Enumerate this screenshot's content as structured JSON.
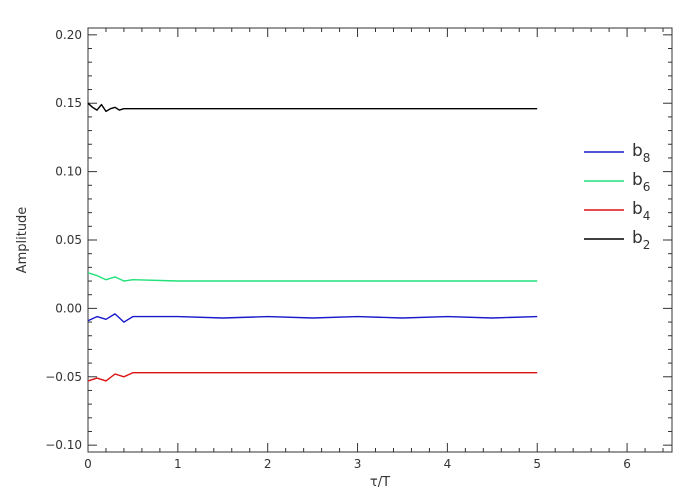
{
  "chart_data": {
    "type": "line",
    "title": "",
    "xlabel": "τ/T",
    "ylabel": "Amplitude",
    "xlim": [
      0,
      6.5
    ],
    "ylim": [
      -0.105,
      0.205
    ],
    "xticks": [
      0,
      1,
      2,
      3,
      4,
      5,
      6
    ],
    "xtick_labels": [
      "0",
      "1",
      "2",
      "3",
      "4",
      "5",
      "6"
    ],
    "yticks": [
      -0.1,
      -0.05,
      0.0,
      0.05,
      0.1,
      0.15,
      0.2
    ],
    "ytick_labels": [
      "−0.10",
      "−0.05",
      "0.00",
      "0.05",
      "0.10",
      "0.15",
      "0.20"
    ],
    "grid": false,
    "legend_position": "right",
    "series": [
      {
        "name": "b8",
        "base": "b",
        "sub": "8",
        "color": "#1a1acc",
        "x": [
          0,
          0.1,
          0.2,
          0.3,
          0.4,
          0.5,
          1,
          1.5,
          2,
          2.5,
          3,
          3.5,
          4,
          4.5,
          5
        ],
        "y": [
          -0.009,
          -0.006,
          -0.008,
          -0.004,
          -0.01,
          -0.006,
          -0.006,
          -0.007,
          -0.006,
          -0.007,
          -0.006,
          -0.007,
          -0.006,
          -0.007,
          -0.006
        ]
      },
      {
        "name": "b6",
        "base": "b",
        "sub": "6",
        "color": "#22e07a",
        "x": [
          0,
          0.1,
          0.2,
          0.3,
          0.4,
          0.5,
          1,
          1.5,
          2,
          2.5,
          3,
          3.5,
          4,
          4.5,
          5
        ],
        "y": [
          0.026,
          0.024,
          0.021,
          0.023,
          0.02,
          0.021,
          0.02,
          0.02,
          0.02,
          0.02,
          0.02,
          0.02,
          0.02,
          0.02,
          0.02
        ]
      },
      {
        "name": "b4",
        "base": "b",
        "sub": "4",
        "color": "#dd1111",
        "x": [
          0,
          0.1,
          0.2,
          0.3,
          0.4,
          0.5,
          1,
          1.5,
          2,
          2.5,
          3,
          3.5,
          4,
          4.5,
          5
        ],
        "y": [
          -0.053,
          -0.051,
          -0.053,
          -0.048,
          -0.05,
          -0.047,
          -0.047,
          -0.047,
          -0.047,
          -0.047,
          -0.047,
          -0.047,
          -0.047,
          -0.047,
          -0.047
        ]
      },
      {
        "name": "b2",
        "base": "b",
        "sub": "2",
        "color": "#000000",
        "x": [
          0,
          0.05,
          0.1,
          0.15,
          0.2,
          0.25,
          0.3,
          0.35,
          0.4,
          0.5,
          1,
          1.5,
          2,
          2.5,
          3,
          3.5,
          4,
          4.5,
          5
        ],
        "y": [
          0.15,
          0.147,
          0.145,
          0.149,
          0.144,
          0.146,
          0.147,
          0.145,
          0.146,
          0.146,
          0.146,
          0.146,
          0.146,
          0.146,
          0.146,
          0.146,
          0.146,
          0.146,
          0.146
        ]
      }
    ],
    "legend_order": [
      "b8",
      "b6",
      "b4",
      "b2"
    ]
  }
}
